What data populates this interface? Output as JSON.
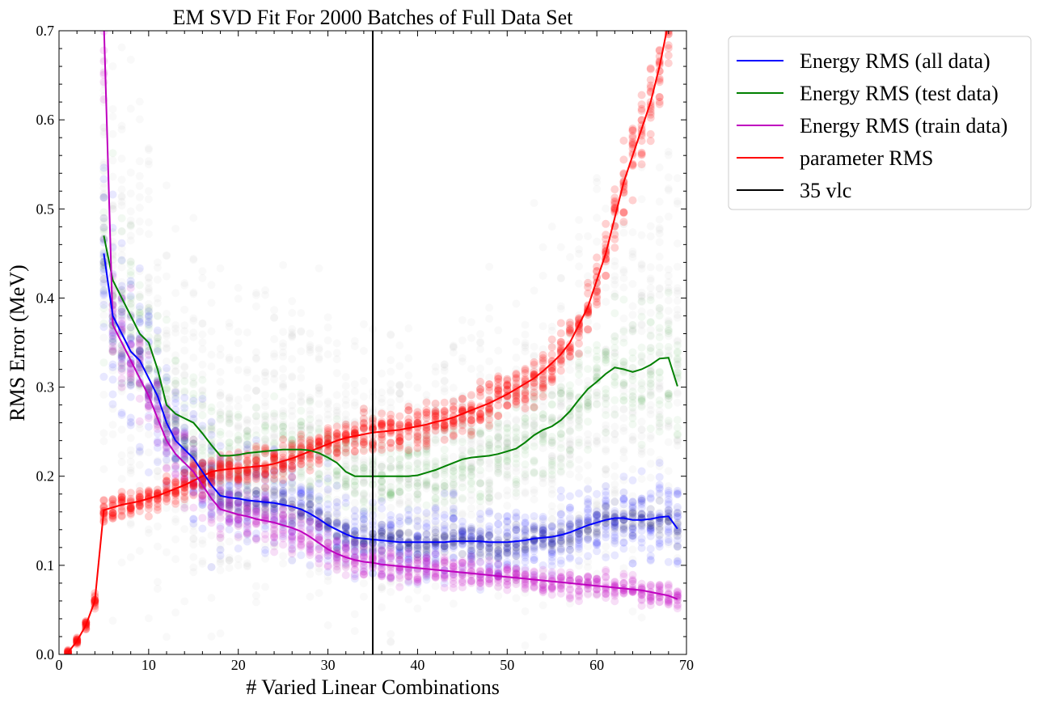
{
  "chart_data": {
    "type": "line",
    "title": "EM SVD Fit For 2000 Batches of Full Data Set",
    "xlabel": "# Varied Linear Combinations",
    "ylabel": "RMS Error (MeV)",
    "xlim": [
      0,
      70
    ],
    "ylim": [
      0,
      0.7
    ],
    "xticks": [
      "0",
      "10",
      "20",
      "30",
      "40",
      "50",
      "60",
      "70"
    ],
    "yticks": [
      "0.0",
      "0.1",
      "0.2",
      "0.3",
      "0.4",
      "0.5",
      "0.6",
      "0.7"
    ],
    "grid": false,
    "legend_position": "outside-top-right",
    "x": [
      1,
      2,
      3,
      4,
      5,
      6,
      7,
      8,
      9,
      10,
      11,
      12,
      13,
      14,
      15,
      16,
      17,
      18,
      19,
      20,
      21,
      22,
      23,
      24,
      25,
      26,
      27,
      28,
      29,
      30,
      31,
      32,
      33,
      34,
      35,
      36,
      37,
      38,
      39,
      40,
      41,
      42,
      43,
      44,
      45,
      46,
      47,
      48,
      49,
      50,
      51,
      52,
      53,
      54,
      55,
      56,
      57,
      58,
      59,
      60,
      61,
      62,
      63,
      64,
      65,
      66,
      67,
      68,
      69
    ],
    "series": [
      {
        "name": "Energy RMS (all data)",
        "color": "#0000ff",
        "values": [
          null,
          null,
          null,
          null,
          0.45,
          0.38,
          0.36,
          0.34,
          0.33,
          0.31,
          0.29,
          0.26,
          0.24,
          0.23,
          0.22,
          0.205,
          0.19,
          0.178,
          0.176,
          0.175,
          0.173,
          0.172,
          0.171,
          0.17,
          0.168,
          0.166,
          0.163,
          0.158,
          0.152,
          0.145,
          0.14,
          0.135,
          0.131,
          0.13,
          0.129,
          0.128,
          0.127,
          0.126,
          0.126,
          0.126,
          0.126,
          0.126,
          0.126,
          0.127,
          0.127,
          0.127,
          0.127,
          0.126,
          0.126,
          0.126,
          0.127,
          0.128,
          0.13,
          0.131,
          0.132,
          0.134,
          0.137,
          0.141,
          0.145,
          0.148,
          0.151,
          0.153,
          0.153,
          0.151,
          0.151,
          0.152,
          0.154,
          0.155,
          0.141
        ]
      },
      {
        "name": "Energy RMS (test data)",
        "color": "#008000",
        "values": [
          null,
          null,
          null,
          null,
          0.47,
          0.42,
          0.4,
          0.38,
          0.36,
          0.35,
          0.32,
          0.28,
          0.27,
          0.265,
          0.26,
          0.248,
          0.235,
          0.223,
          0.223,
          0.224,
          0.226,
          0.227,
          0.228,
          0.229,
          0.23,
          0.23,
          0.23,
          0.229,
          0.226,
          0.221,
          0.215,
          0.205,
          0.2,
          0.2,
          0.2,
          0.2,
          0.2,
          0.2,
          0.2,
          0.201,
          0.204,
          0.207,
          0.211,
          0.215,
          0.219,
          0.221,
          0.222,
          0.223,
          0.225,
          0.228,
          0.231,
          0.238,
          0.246,
          0.252,
          0.256,
          0.263,
          0.273,
          0.286,
          0.298,
          0.306,
          0.315,
          0.322,
          0.32,
          0.317,
          0.32,
          0.325,
          0.332,
          0.333,
          0.301
        ]
      },
      {
        "name": "Energy RMS (train data)",
        "color": "#bf00bf",
        "values": [
          null,
          null,
          null,
          null,
          0.71,
          0.37,
          0.35,
          0.33,
          0.31,
          0.29,
          0.265,
          0.24,
          0.225,
          0.215,
          0.205,
          0.19,
          0.175,
          0.163,
          0.16,
          0.157,
          0.155,
          0.152,
          0.15,
          0.148,
          0.145,
          0.142,
          0.138,
          0.132,
          0.125,
          0.118,
          0.113,
          0.109,
          0.106,
          0.104,
          0.103,
          0.101,
          0.1,
          0.099,
          0.098,
          0.097,
          0.096,
          0.095,
          0.094,
          0.093,
          0.092,
          0.091,
          0.09,
          0.089,
          0.088,
          0.087,
          0.086,
          0.085,
          0.084,
          0.083,
          0.082,
          0.081,
          0.08,
          0.079,
          0.078,
          0.077,
          0.076,
          0.075,
          0.074,
          0.073,
          0.072,
          0.07,
          0.068,
          0.066,
          0.062
        ]
      },
      {
        "name": "parameter RMS",
        "color": "#ff0000",
        "values": [
          0.002,
          0.015,
          0.033,
          0.06,
          0.162,
          0.165,
          0.168,
          0.17,
          0.172,
          0.175,
          0.178,
          0.182,
          0.186,
          0.19,
          0.195,
          0.2,
          0.205,
          0.207,
          0.208,
          0.209,
          0.21,
          0.211,
          0.212,
          0.214,
          0.217,
          0.22,
          0.224,
          0.228,
          0.232,
          0.236,
          0.24,
          0.243,
          0.245,
          0.247,
          0.249,
          0.25,
          0.251,
          0.252,
          0.254,
          0.256,
          0.258,
          0.261,
          0.263,
          0.266,
          0.27,
          0.274,
          0.278,
          0.282,
          0.287,
          0.292,
          0.298,
          0.304,
          0.31,
          0.318,
          0.327,
          0.337,
          0.35,
          0.37,
          0.39,
          0.42,
          0.45,
          0.49,
          0.53,
          0.56,
          0.59,
          0.62,
          0.66,
          0.71,
          0.78
        ]
      },
      {
        "name": "35 vlc",
        "color": "#000000",
        "vline_x": 35
      }
    ]
  }
}
